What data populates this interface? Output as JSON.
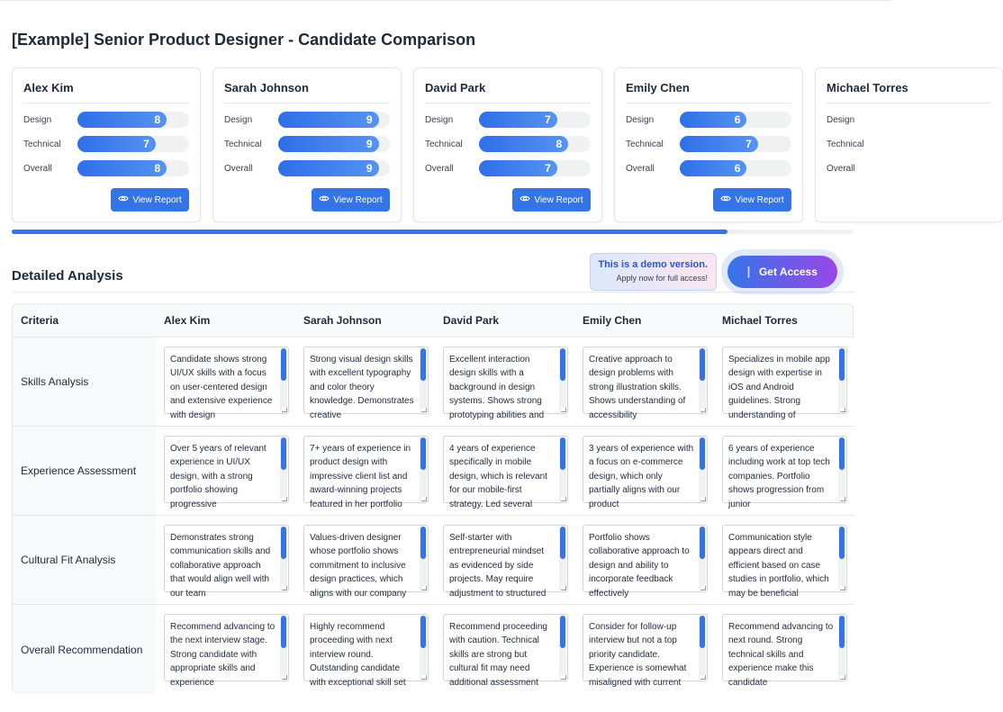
{
  "title": "[Example] Senior Product Designer - Candidate Comparison",
  "score_labels": [
    "Design",
    "Technical",
    "Overall"
  ],
  "view_report_label": "View Report",
  "candidates": [
    {
      "name": "Alex Kim",
      "scores": [
        8,
        7,
        8
      ]
    },
    {
      "name": "Sarah Johnson",
      "scores": [
        9,
        9,
        9
      ]
    },
    {
      "name": "David Park",
      "scores": [
        7,
        8,
        7
      ]
    },
    {
      "name": "Emily Chen",
      "scores": [
        6,
        7,
        6
      ]
    },
    {
      "name": "Michael Torres",
      "scores": null
    }
  ],
  "carousel_scroll_fraction": 0.85,
  "analysis": {
    "heading": "Detailed Analysis",
    "criteria_header": "Criteria",
    "columns": [
      "Alex Kim",
      "Sarah Johnson",
      "David Park",
      "Emily Chen",
      "Michael Torres"
    ],
    "rows": [
      {
        "criterion": "Skills Analysis",
        "cells": [
          "Candidate shows strong UI/UX skills with a focus on user-centered design and extensive experience with design",
          "Strong visual design skills with excellent typography and color theory knowledge. Demonstrates creative",
          "Excellent interaction design skills with a background in design systems. Shows strong prototyping abilities and",
          "Creative approach to design problems with strong illustration skills. Shows understanding of accessibility",
          "Specializes in mobile app design with expertise in iOS and Android guidelines. Strong understanding of"
        ]
      },
      {
        "criterion": "Experience Assessment",
        "cells": [
          "Over 5 years of relevant experience in UI/UX design, with a strong portfolio showing progressive",
          "7+ years of experience in product design with impressive client list and award-winning projects featured in her portfolio",
          "4 years of experience specifically in mobile design, which is relevant for our mobile-first strategy. Led several",
          "3 years of experience with a focus on e-commerce design, which only partially aligns with our product",
          "6 years of experience including work at top tech companies. Portfolio shows progression from junior"
        ]
      },
      {
        "criterion": "Cultural Fit Analysis",
        "cells": [
          "Demonstrates strong communication skills and collaborative approach that would align well with our team",
          "Values-driven designer whose portfolio shows commitment to inclusive design practices, which aligns with our company",
          "Self-starter with entrepreneurial mindset as evidenced by side projects. May require adjustment to structured",
          "Portfolio shows collaborative approach to design and ability to incorporate feedback effectively",
          "Communication style appears direct and efficient based on case studies in portfolio, which may be beneficial"
        ]
      },
      {
        "criterion": "Overall Recommendation",
        "cells": [
          "Recommend advancing to the next interview stage. Strong candidate with appropriate skills and experience",
          "Highly recommend proceeding with next interview round. Outstanding candidate with exceptional skill set",
          "Recommend proceeding with caution. Technical skills are strong but cultural fit may need additional assessment",
          "Consider for follow-up interview but not a top priority candidate. Experience is somewhat misaligned with current",
          "Recommend advancing to next round. Strong technical skills and experience make this candidate"
        ]
      }
    ]
  },
  "demo_banner": {
    "title": "This is a demo version.",
    "subtitle": "Apply now for full access!"
  },
  "get_access_label": "Get Access",
  "colors": {
    "accent": "#3574e6",
    "gradient_end": "#9a46e8"
  }
}
